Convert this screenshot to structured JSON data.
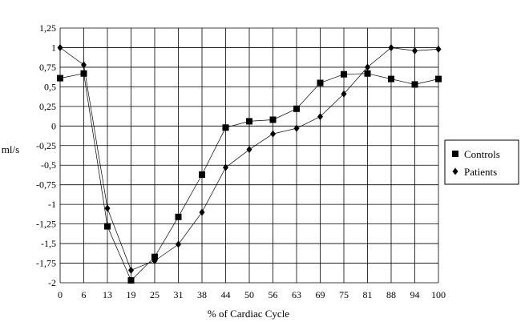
{
  "chart_data": {
    "type": "line",
    "title": "",
    "xlabel": "% of Cardiac Cycle",
    "ylabel": "ml/s",
    "categories": [
      "0",
      "6",
      "13",
      "19",
      "25",
      "31",
      "38",
      "44",
      "50",
      "56",
      "63",
      "69",
      "75",
      "81",
      "88",
      "94",
      "100"
    ],
    "ylim": [
      -2,
      1.25
    ],
    "y_ticks": [
      1.25,
      1,
      0.75,
      0.5,
      0.25,
      0,
      -0.25,
      -0.5,
      -0.75,
      -1,
      -1.25,
      -1.5,
      -1.75,
      -2
    ],
    "y_tick_labels": [
      "1,25",
      "1",
      "0,75",
      "0,5",
      "0,25",
      "0",
      "-0,25",
      "-0,5",
      "-0,75",
      "-1",
      "-1,25",
      "-1,5",
      "-1,75",
      "-2"
    ],
    "grid": true,
    "legend_position": "right",
    "series": [
      {
        "name": "Controls",
        "marker": "square",
        "color": "#000000",
        "values": [
          0.61,
          0.67,
          -1.28,
          -1.97,
          -1.67,
          -1.16,
          -0.62,
          -0.02,
          0.06,
          0.08,
          0.22,
          0.55,
          0.66,
          0.67,
          0.6,
          0.53,
          0.6
        ]
      },
      {
        "name": "Patients",
        "marker": "diamond",
        "color": "#000000",
        "values": [
          1.0,
          0.78,
          -1.05,
          -1.84,
          -1.72,
          -1.51,
          -1.1,
          -0.53,
          -0.3,
          -0.1,
          -0.03,
          0.12,
          0.41,
          0.75,
          1.0,
          0.96,
          0.98
        ]
      }
    ]
  }
}
